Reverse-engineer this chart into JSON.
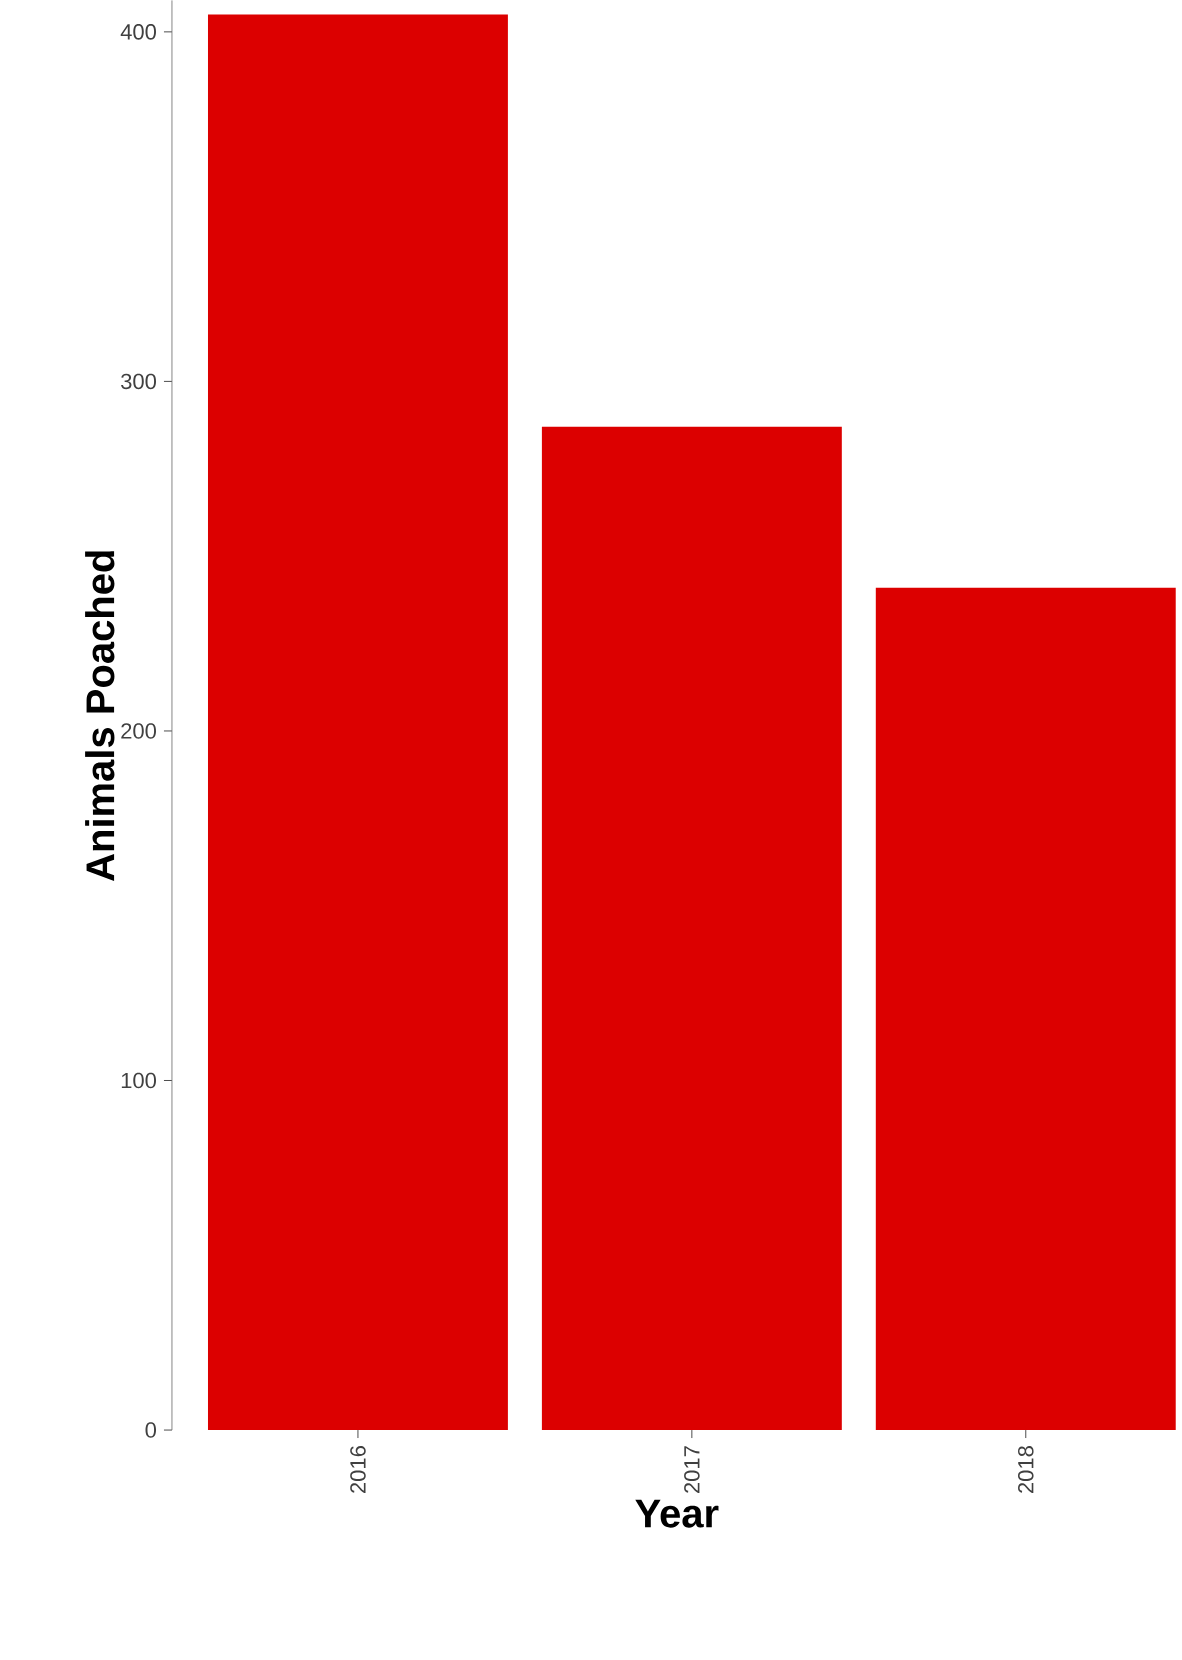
{
  "chart_data": {
    "type": "bar",
    "xlabel": "Year",
    "ylabel": "Animals Poached",
    "categories": [
      "2016",
      "2017",
      "2018"
    ],
    "values": [
      405,
      287,
      241
    ],
    "color": "#dc0000",
    "ylim": [
      0,
      409
    ],
    "yticks": [
      0,
      100,
      200,
      300,
      400
    ],
    "grid": false
  }
}
